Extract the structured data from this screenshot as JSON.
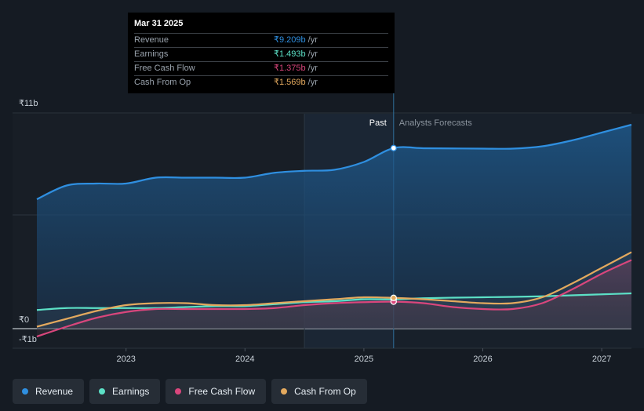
{
  "chart_data": {
    "type": "line",
    "x": [
      2022.25,
      2022.5,
      2022.75,
      2023.0,
      2023.25,
      2023.5,
      2023.75,
      2024.0,
      2024.25,
      2024.5,
      2024.75,
      2025.0,
      2025.25,
      2025.5,
      2025.75,
      2026.0,
      2026.25,
      2026.5,
      2026.75,
      2027.0,
      2027.25
    ],
    "series": [
      {
        "name": "Revenue",
        "color": "#2f8fe0",
        "values": [
          6.6,
          7.3,
          7.4,
          7.4,
          7.7,
          7.7,
          7.7,
          7.7,
          7.95,
          8.05,
          8.1,
          8.5,
          9.209,
          9.2,
          9.19,
          9.18,
          9.18,
          9.3,
          9.6,
          10.0,
          10.4
        ]
      },
      {
        "name": "Earnings",
        "color": "#5ce0c6",
        "values": [
          0.95,
          1.05,
          1.05,
          1.05,
          1.05,
          1.1,
          1.15,
          1.15,
          1.25,
          1.35,
          1.4,
          1.5,
          1.493,
          1.55,
          1.58,
          1.6,
          1.62,
          1.65,
          1.7,
          1.75,
          1.8
        ]
      },
      {
        "name": "Free Cash Flow",
        "color": "#d9467c",
        "values": [
          -0.4,
          0.1,
          0.55,
          0.85,
          1.0,
          1.0,
          1.0,
          1.0,
          1.05,
          1.2,
          1.3,
          1.35,
          1.375,
          1.3,
          1.1,
          1.0,
          1.0,
          1.3,
          2.0,
          2.8,
          3.5
        ]
      },
      {
        "name": "Cash From Op",
        "color": "#e3a95e",
        "values": [
          0.1,
          0.5,
          0.9,
          1.2,
          1.3,
          1.3,
          1.2,
          1.2,
          1.3,
          1.4,
          1.5,
          1.6,
          1.569,
          1.5,
          1.4,
          1.3,
          1.3,
          1.6,
          2.3,
          3.1,
          3.9
        ]
      }
    ],
    "xticks": [
      2023,
      2024,
      2025,
      2026,
      2027
    ],
    "xtick_labels": [
      "2023",
      "2024",
      "2025",
      "2026",
      "2027"
    ],
    "xlim": [
      2022.25,
      2027.25
    ],
    "ylim": [
      -1,
      11
    ],
    "ytick_labels": [
      {
        "v": 11,
        "label": "₹11b"
      },
      {
        "v": 0,
        "label": "₹0"
      },
      {
        "v": -1,
        "label": "-₹1b"
      }
    ],
    "divider_x": 2025.25,
    "past_label": "Past",
    "forecast_label": "Analysts Forecasts",
    "past_shade_from": 2024.5
  },
  "tooltip": {
    "date": "Mar 31 2025",
    "unit": "/yr",
    "rows": [
      {
        "label": "Revenue",
        "value": "₹9.209b",
        "color": "#2f8fe0"
      },
      {
        "label": "Earnings",
        "value": "₹1.493b",
        "color": "#5ce0c6"
      },
      {
        "label": "Free Cash Flow",
        "value": "₹1.375b",
        "color": "#d9467c"
      },
      {
        "label": "Cash From Op",
        "value": "₹1.569b",
        "color": "#e3a95e"
      }
    ]
  },
  "legend": [
    {
      "label": "Revenue",
      "color": "#2f8fe0"
    },
    {
      "label": "Earnings",
      "color": "#5ce0c6"
    },
    {
      "label": "Free Cash Flow",
      "color": "#d9467c"
    },
    {
      "label": "Cash From Op",
      "color": "#e3a95e"
    }
  ]
}
